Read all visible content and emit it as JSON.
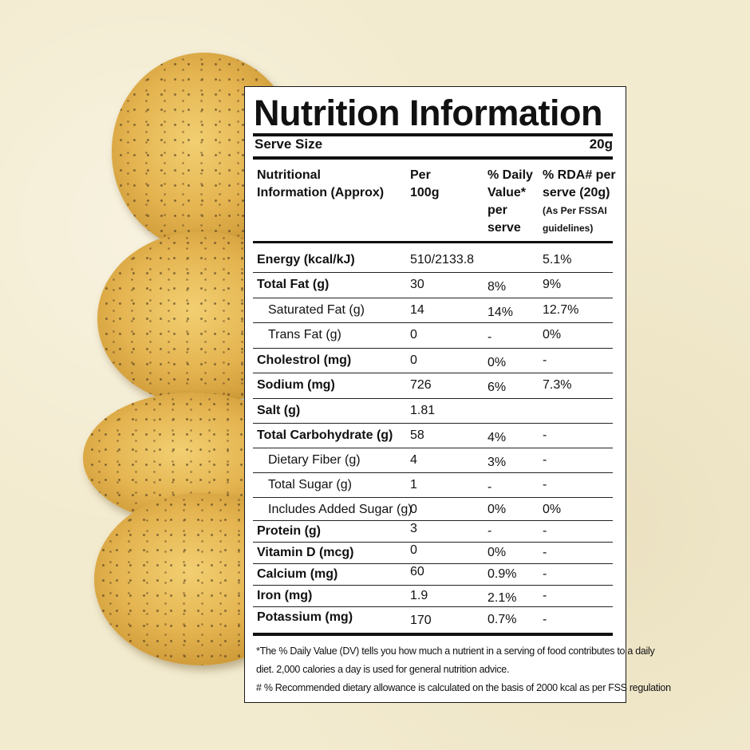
{
  "title": "Nutrition Information",
  "serve_size": {
    "label": "Serve Size",
    "value": "20g"
  },
  "headers": {
    "nutrient": [
      "Nutritional",
      "Information (Approx)"
    ],
    "per100": [
      "Per",
      "100g"
    ],
    "daily_value": [
      "% Daily",
      "Value*",
      "per",
      "serve"
    ],
    "rda": [
      "% RDA# per",
      "serve (20g)",
      "(As Per FSSAI",
      "guidelines)"
    ]
  },
  "rows": [
    {
      "name": "Energy (kcal/kJ)",
      "per100": "510/2133.8",
      "dv": "",
      "rda": "5.1%"
    },
    {
      "name": "Total Fat (g)",
      "per100": "30",
      "dv": "8%",
      "rda": "9%"
    },
    {
      "name": "Saturated Fat (g)",
      "per100": "14",
      "dv": "14%",
      "rda": "12.7%"
    },
    {
      "name": "Trans Fat (g)",
      "per100": "0",
      "dv": "-",
      "rda": "0%"
    },
    {
      "name": "Cholestrol (mg)",
      "per100": "0",
      "dv": "0%",
      "rda": "-"
    },
    {
      "name": "Sodium (mg)",
      "per100": "726",
      "dv": "6%",
      "rda": "7.3%"
    },
    {
      "name": "Salt (g)",
      "per100": "1.81",
      "dv": "",
      "rda": ""
    },
    {
      "name": "Total Carbohydrate (g)",
      "per100": "58",
      "dv": "4%",
      "rda": "-"
    },
    {
      "name": "Dietary Fiber (g)",
      "per100": "4",
      "dv": "3%",
      "rda": "-"
    },
    {
      "name": "Total Sugar (g)",
      "per100": "1",
      "dv": "-",
      "rda": "-"
    },
    {
      "name": "Includes Added Sugar (g)",
      "per100": "0",
      "dv": "0%",
      "rda": "0%"
    },
    {
      "name": "Protein (g)",
      "per100": "3",
      "dv": "-",
      "rda": "-"
    },
    {
      "name": "Vitamin D (mcg)",
      "per100": "0",
      "dv": "0%",
      "rda": "-"
    },
    {
      "name": "Calcium (mg)",
      "per100": "60",
      "dv": "0.9%",
      "rda": "-"
    },
    {
      "name": "Iron (mg)",
      "per100": "1.9",
      "dv": "2.1%",
      "rda": "-"
    },
    {
      "name": "Potassium (mg)",
      "per100": "170",
      "dv": "0.7%",
      "rda": "-"
    }
  ],
  "footnotes": [
    "*The % Daily Value (DV) tells you how much a nutrient in a serving of food contributes to a daily",
    "diet. 2,000 calories a day is used for general nutrition advice.",
    "# % Recommended dietary allowance  is calculated on the basis of 2000 kcal as per FSS regulation"
  ],
  "colors": {
    "background": "#f3ebcf",
    "panel": "#ffffff",
    "ink": "#111111",
    "chip": "#e4b450"
  }
}
